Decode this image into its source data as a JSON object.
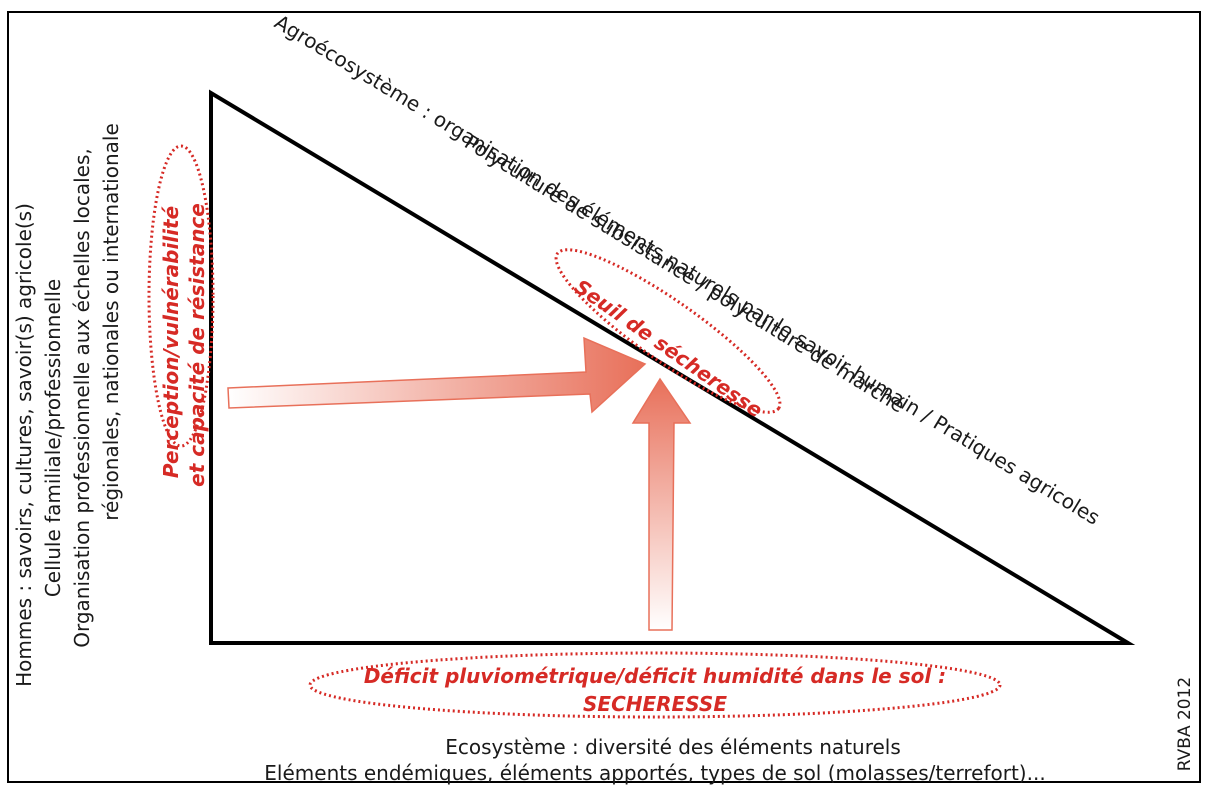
{
  "left_labels": {
    "line1": "Hommes : savoirs, cultures, savoir(s) agricole(s)",
    "line2": "Cellule familiale/professionnelle",
    "line3": "Organisation professionnelle aux échelles locales,",
    "line4": "régionales, nationales ou internationale"
  },
  "perception": {
    "line1": "Perception/vulnérabilité",
    "line2": "et capacité de résistance"
  },
  "hypotenuse_labels": {
    "line1": "Agroécosystème : organisation des éléments naturels par le savoir humain / Pratiques agricoles",
    "line2": "Polyculture de subsistance / polyculture de marché"
  },
  "seuil": "Seuil de sécheresse",
  "deficit": {
    "line1": "Déficit pluviométrique/déficit humidité dans le sol :",
    "line2": "SECHERESSE"
  },
  "bottom_labels": {
    "line1": "Ecosystème : diversité des éléments naturels",
    "line2": "Eléments endémiques, éléments apportés, types de sol (molasses/terrefort)..."
  },
  "credit": "RVBA 2012",
  "colors": {
    "accent": "#d62a25",
    "arrow": "#e8705a",
    "ink": "#1a1a1a"
  }
}
